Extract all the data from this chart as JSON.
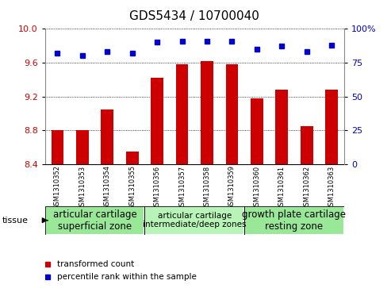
{
  "title": "GDS5434 / 10700040",
  "samples": [
    "GSM1310352",
    "GSM1310353",
    "GSM1310354",
    "GSM1310355",
    "GSM1310356",
    "GSM1310357",
    "GSM1310358",
    "GSM1310359",
    "GSM1310360",
    "GSM1310361",
    "GSM1310362",
    "GSM1310363"
  ],
  "bar_values": [
    8.8,
    8.8,
    9.05,
    8.55,
    9.42,
    9.58,
    9.62,
    9.58,
    9.18,
    9.28,
    8.85,
    9.28
  ],
  "percentile_values": [
    82,
    80,
    83,
    82,
    90,
    91,
    91,
    91,
    85,
    87,
    83,
    88
  ],
  "ylim_left": [
    8.4,
    10.0
  ],
  "ylim_right": [
    0,
    100
  ],
  "yticks_left": [
    8.4,
    8.8,
    9.2,
    9.6,
    10.0
  ],
  "yticks_right": [
    0,
    25,
    50,
    75,
    100
  ],
  "bar_color": "#cc0000",
  "dot_color": "#0000cc",
  "bar_bottom": 8.4,
  "grid_color": "#000000",
  "tissue_groups": [
    {
      "label": "articular cartilage\nsuperficial zone",
      "start": 0,
      "end": 3,
      "color": "#98e898",
      "fontsize": 8.5
    },
    {
      "label": "articular cartilage\nintermediate/deep zones",
      "start": 4,
      "end": 7,
      "color": "#b8f4b8",
      "fontsize": 7.5
    },
    {
      "label": "growth plate cartilage\nresting zone",
      "start": 8,
      "end": 11,
      "color": "#98e898",
      "fontsize": 8.5
    }
  ],
  "legend_items": [
    {
      "label": "transformed count",
      "color": "#cc0000"
    },
    {
      "label": "percentile rank within the sample",
      "color": "#0000cc"
    }
  ],
  "tissue_label": "tissue",
  "background_color": "#ffffff",
  "sample_box_color": "#d0d0d0",
  "bar_width": 0.5,
  "title_fontsize": 11,
  "tick_fontsize": 8,
  "sample_fontsize": 6
}
